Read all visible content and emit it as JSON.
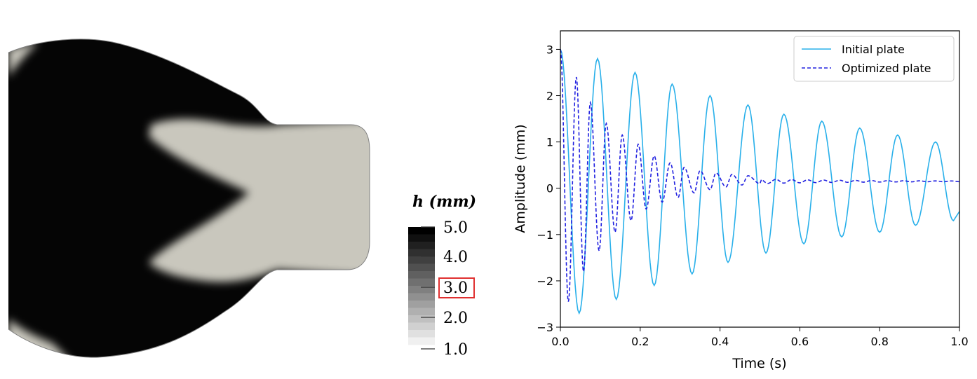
{
  "colorbar": {
    "title": "h (mm)",
    "ticks": [
      "5.0",
      "4.0",
      "3.0",
      "2.0",
      "1.0"
    ],
    "highlighted_tick": "3.0",
    "highlight_color": "#e03030",
    "min_color": "#f0f0f0",
    "max_color": "#000000"
  },
  "plate": {
    "thick_color": "#050505",
    "thin_color": "#c9c7bd",
    "edge_color": "#808080"
  },
  "chart_data": {
    "type": "line",
    "xlabel": "Time (s)",
    "ylabel": "Amplitude (mm)",
    "xlim": [
      0.0,
      1.0
    ],
    "ylim": [
      -3,
      3.4
    ],
    "xticks": [
      "0.0",
      "0.2",
      "0.4",
      "0.6",
      "0.8",
      "1.0"
    ],
    "yticks": [
      "−3",
      "−2",
      "−1",
      "0",
      "1",
      "2",
      "3"
    ],
    "legend_position": "top-right",
    "grid": false,
    "series": [
      {
        "name": "Initial plate",
        "color": "#29b0ea",
        "style": "solid",
        "initial_amplitude": 3.0,
        "period": 0.0935,
        "envelope_peaks": [
          {
            "t": 0.0,
            "y": 3.0
          },
          {
            "t": 0.093,
            "y": 2.8
          },
          {
            "t": 0.187,
            "y": 2.5
          },
          {
            "t": 0.28,
            "y": 2.25
          },
          {
            "t": 0.375,
            "y": 2.0
          },
          {
            "t": 0.47,
            "y": 1.8
          },
          {
            "t": 0.56,
            "y": 1.6
          },
          {
            "t": 0.655,
            "y": 1.45
          },
          {
            "t": 0.75,
            "y": 1.3
          },
          {
            "t": 0.845,
            "y": 1.15
          },
          {
            "t": 0.94,
            "y": 1.0
          }
        ],
        "envelope_troughs": [
          {
            "t": 0.047,
            "y": -2.7
          },
          {
            "t": 0.14,
            "y": -2.4
          },
          {
            "t": 0.235,
            "y": -2.1
          },
          {
            "t": 0.33,
            "y": -1.85
          },
          {
            "t": 0.42,
            "y": -1.6
          },
          {
            "t": 0.515,
            "y": -1.4
          },
          {
            "t": 0.61,
            "y": -1.2
          },
          {
            "t": 0.705,
            "y": -1.05
          },
          {
            "t": 0.8,
            "y": -0.95
          },
          {
            "t": 0.89,
            "y": -0.8
          },
          {
            "t": 0.985,
            "y": -0.7
          }
        ]
      },
      {
        "name": "Optimized plate",
        "color": "#2020e0",
        "style": "dashed",
        "offset": 0.15,
        "envelope_peaks": [
          {
            "t": 0.0,
            "y": 3.0
          },
          {
            "t": 0.04,
            "y": 2.4
          },
          {
            "t": 0.075,
            "y": 1.85
          },
          {
            "t": 0.115,
            "y": 1.4
          },
          {
            "t": 0.155,
            "y": 1.15
          },
          {
            "t": 0.195,
            "y": 0.95
          },
          {
            "t": 0.235,
            "y": 0.7
          },
          {
            "t": 0.275,
            "y": 0.55
          },
          {
            "t": 0.31,
            "y": 0.45
          },
          {
            "t": 0.35,
            "y": 0.38
          },
          {
            "t": 0.39,
            "y": 0.33
          },
          {
            "t": 0.43,
            "y": 0.3
          },
          {
            "t": 0.47,
            "y": 0.27
          }
        ],
        "envelope_troughs": [
          {
            "t": 0.02,
            "y": -2.45
          },
          {
            "t": 0.058,
            "y": -1.8
          },
          {
            "t": 0.097,
            "y": -1.35
          },
          {
            "t": 0.137,
            "y": -0.95
          },
          {
            "t": 0.177,
            "y": -0.7
          },
          {
            "t": 0.215,
            "y": -0.45
          },
          {
            "t": 0.255,
            "y": -0.3
          },
          {
            "t": 0.295,
            "y": -0.2
          },
          {
            "t": 0.335,
            "y": -0.1
          },
          {
            "t": 0.375,
            "y": -0.03
          },
          {
            "t": 0.415,
            "y": 0.03
          },
          {
            "t": 0.455,
            "y": 0.07
          },
          {
            "t": 0.5,
            "y": 0.1
          }
        ]
      }
    ]
  }
}
